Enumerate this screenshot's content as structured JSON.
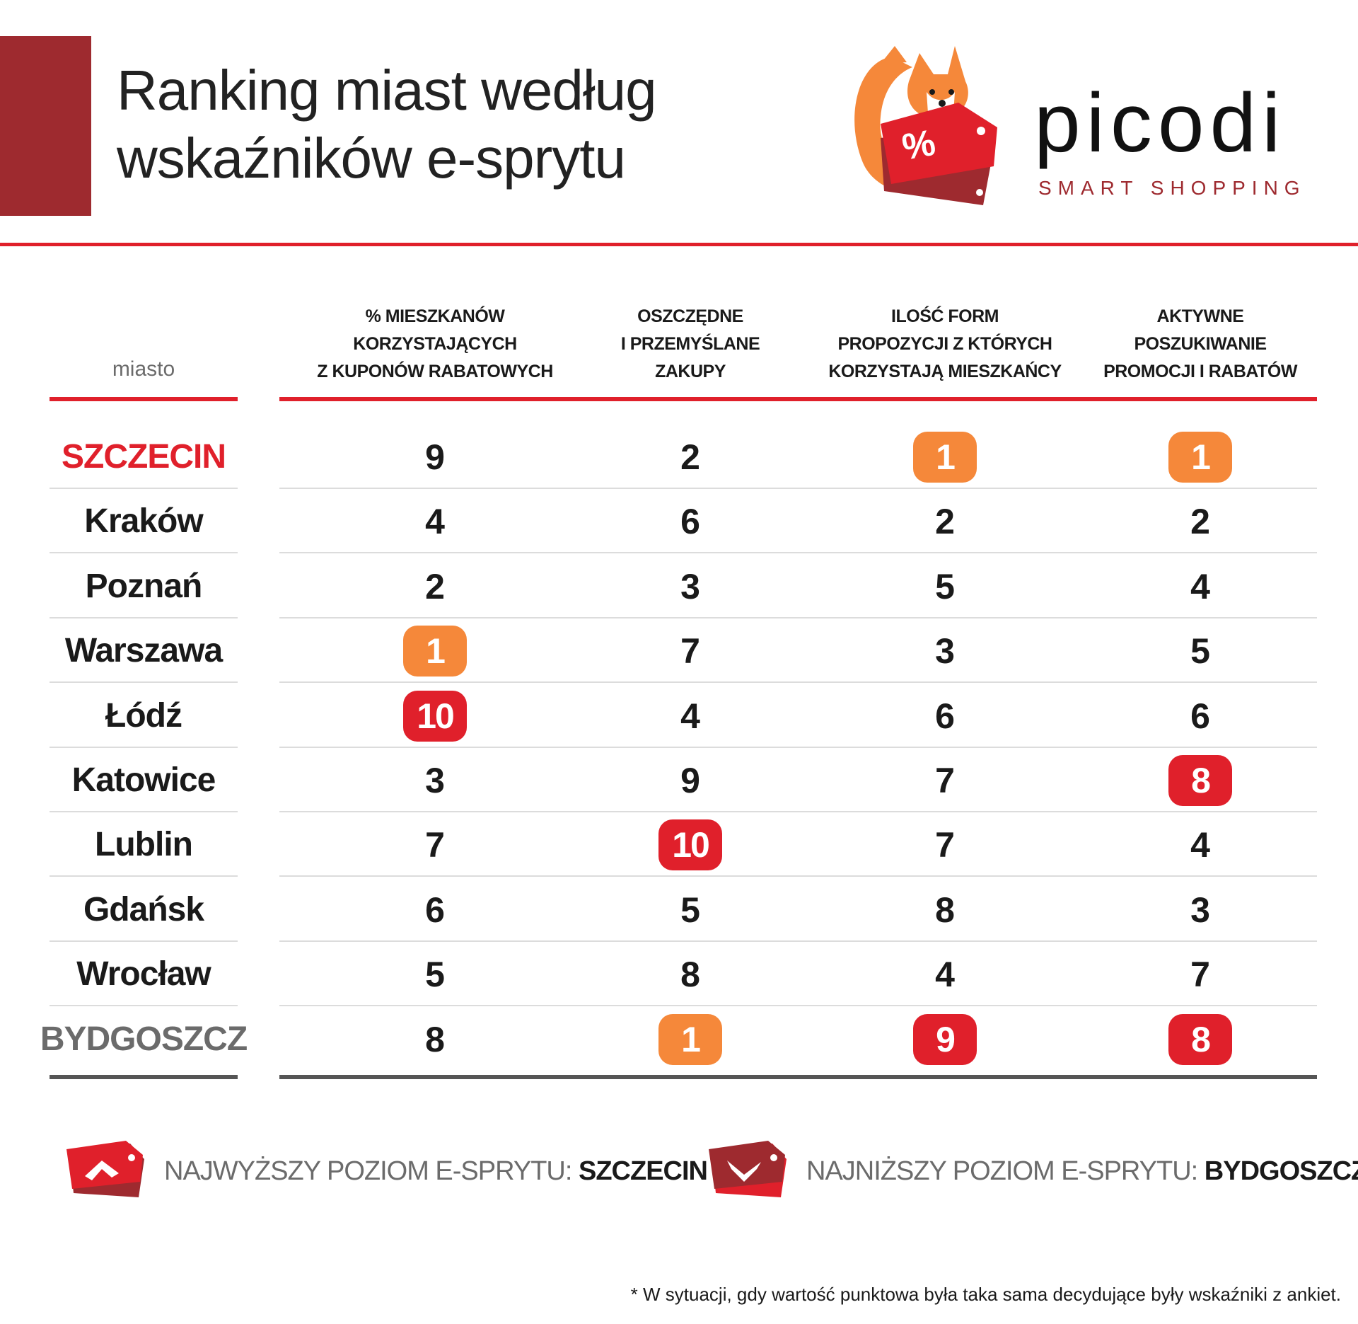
{
  "header": {
    "title_line1": "Ranking miast według",
    "title_line2": "wskaźników e-sprytu"
  },
  "logo": {
    "word": "picodi",
    "tagline": "SMART SHOPPING",
    "badge_symbol": "%",
    "colors": {
      "fox": "#f5883a",
      "tag_red": "#e0202b",
      "tag_dark": "#9e2a2f"
    }
  },
  "colors": {
    "accent": "#e0202b",
    "dark_red": "#9e2a2f",
    "orange_badge": "#f5883a",
    "red_badge": "#e0202b",
    "gray": "#6b6b6b"
  },
  "table": {
    "city_header": "miasto",
    "columns": [
      [
        "% MIESZKANÓW",
        "KORZYSTAJĄCYCH",
        "Z KUPONÓW RABATOWYCH"
      ],
      [
        "OSZCZĘDNE",
        "I PRZEMYŚLANE",
        "ZAKUPY"
      ],
      [
        "ILOŚĆ FORM",
        "PROPOZYCJI Z KTÓRYCH",
        "KORZYSTAJĄ MIESZKAŃCY"
      ],
      [
        "AKTYWNE",
        "POSZUKIWANIE",
        "PROMOCJI I RABATÓW"
      ]
    ],
    "rows": [
      {
        "city": "SZCZECIN",
        "style": "best",
        "values": [
          "9",
          "2",
          "1",
          "1"
        ],
        "badges": [
          "",
          "",
          "orange",
          "orange"
        ]
      },
      {
        "city": "Kraków",
        "style": "normal",
        "values": [
          "4",
          "6",
          "2",
          "2"
        ],
        "badges": [
          "",
          "",
          "",
          ""
        ]
      },
      {
        "city": "Poznań",
        "style": "normal",
        "values": [
          "2",
          "3",
          "5",
          "4"
        ],
        "badges": [
          "",
          "",
          "",
          ""
        ]
      },
      {
        "city": "Warszawa",
        "style": "normal",
        "values": [
          "1",
          "7",
          "3",
          "5"
        ],
        "badges": [
          "orange",
          "",
          "",
          ""
        ]
      },
      {
        "city": "Łódź",
        "style": "normal",
        "values": [
          "10",
          "4",
          "6",
          "6"
        ],
        "badges": [
          "red",
          "",
          "",
          ""
        ]
      },
      {
        "city": "Katowice",
        "style": "normal",
        "values": [
          "3",
          "9",
          "7",
          "8"
        ],
        "badges": [
          "",
          "",
          "",
          "red"
        ]
      },
      {
        "city": "Lublin",
        "style": "normal",
        "values": [
          "7",
          "10",
          "7",
          "4"
        ],
        "badges": [
          "",
          "red",
          "",
          ""
        ]
      },
      {
        "city": "Gdańsk",
        "style": "normal",
        "values": [
          "6",
          "5",
          "8",
          "3"
        ],
        "badges": [
          "",
          "",
          "",
          ""
        ]
      },
      {
        "city": "Wrocław",
        "style": "normal",
        "values": [
          "5",
          "8",
          "4",
          "7"
        ],
        "badges": [
          "",
          "",
          "",
          ""
        ]
      },
      {
        "city": "BYDGOSZCZ",
        "style": "worst",
        "values": [
          "8",
          "1",
          "9",
          "8"
        ],
        "badges": [
          "",
          "orange",
          "red",
          "red"
        ]
      }
    ]
  },
  "legend": {
    "highest_label": "NAJWYŻSZY POZIOM E-SPRYTU:",
    "highest_city": "SZCZECIN",
    "highest_icon": "tag-arrow-up-icon",
    "lowest_label": "NAJNIŻSZY POZIOM E-SPRYTU:",
    "lowest_city": "BYDGOSZCZ",
    "lowest_icon": "tag-arrow-down-icon"
  },
  "footnote": "* W sytuacji, gdy wartość punktowa była taka sama decydujące były wskaźniki z ankiet."
}
